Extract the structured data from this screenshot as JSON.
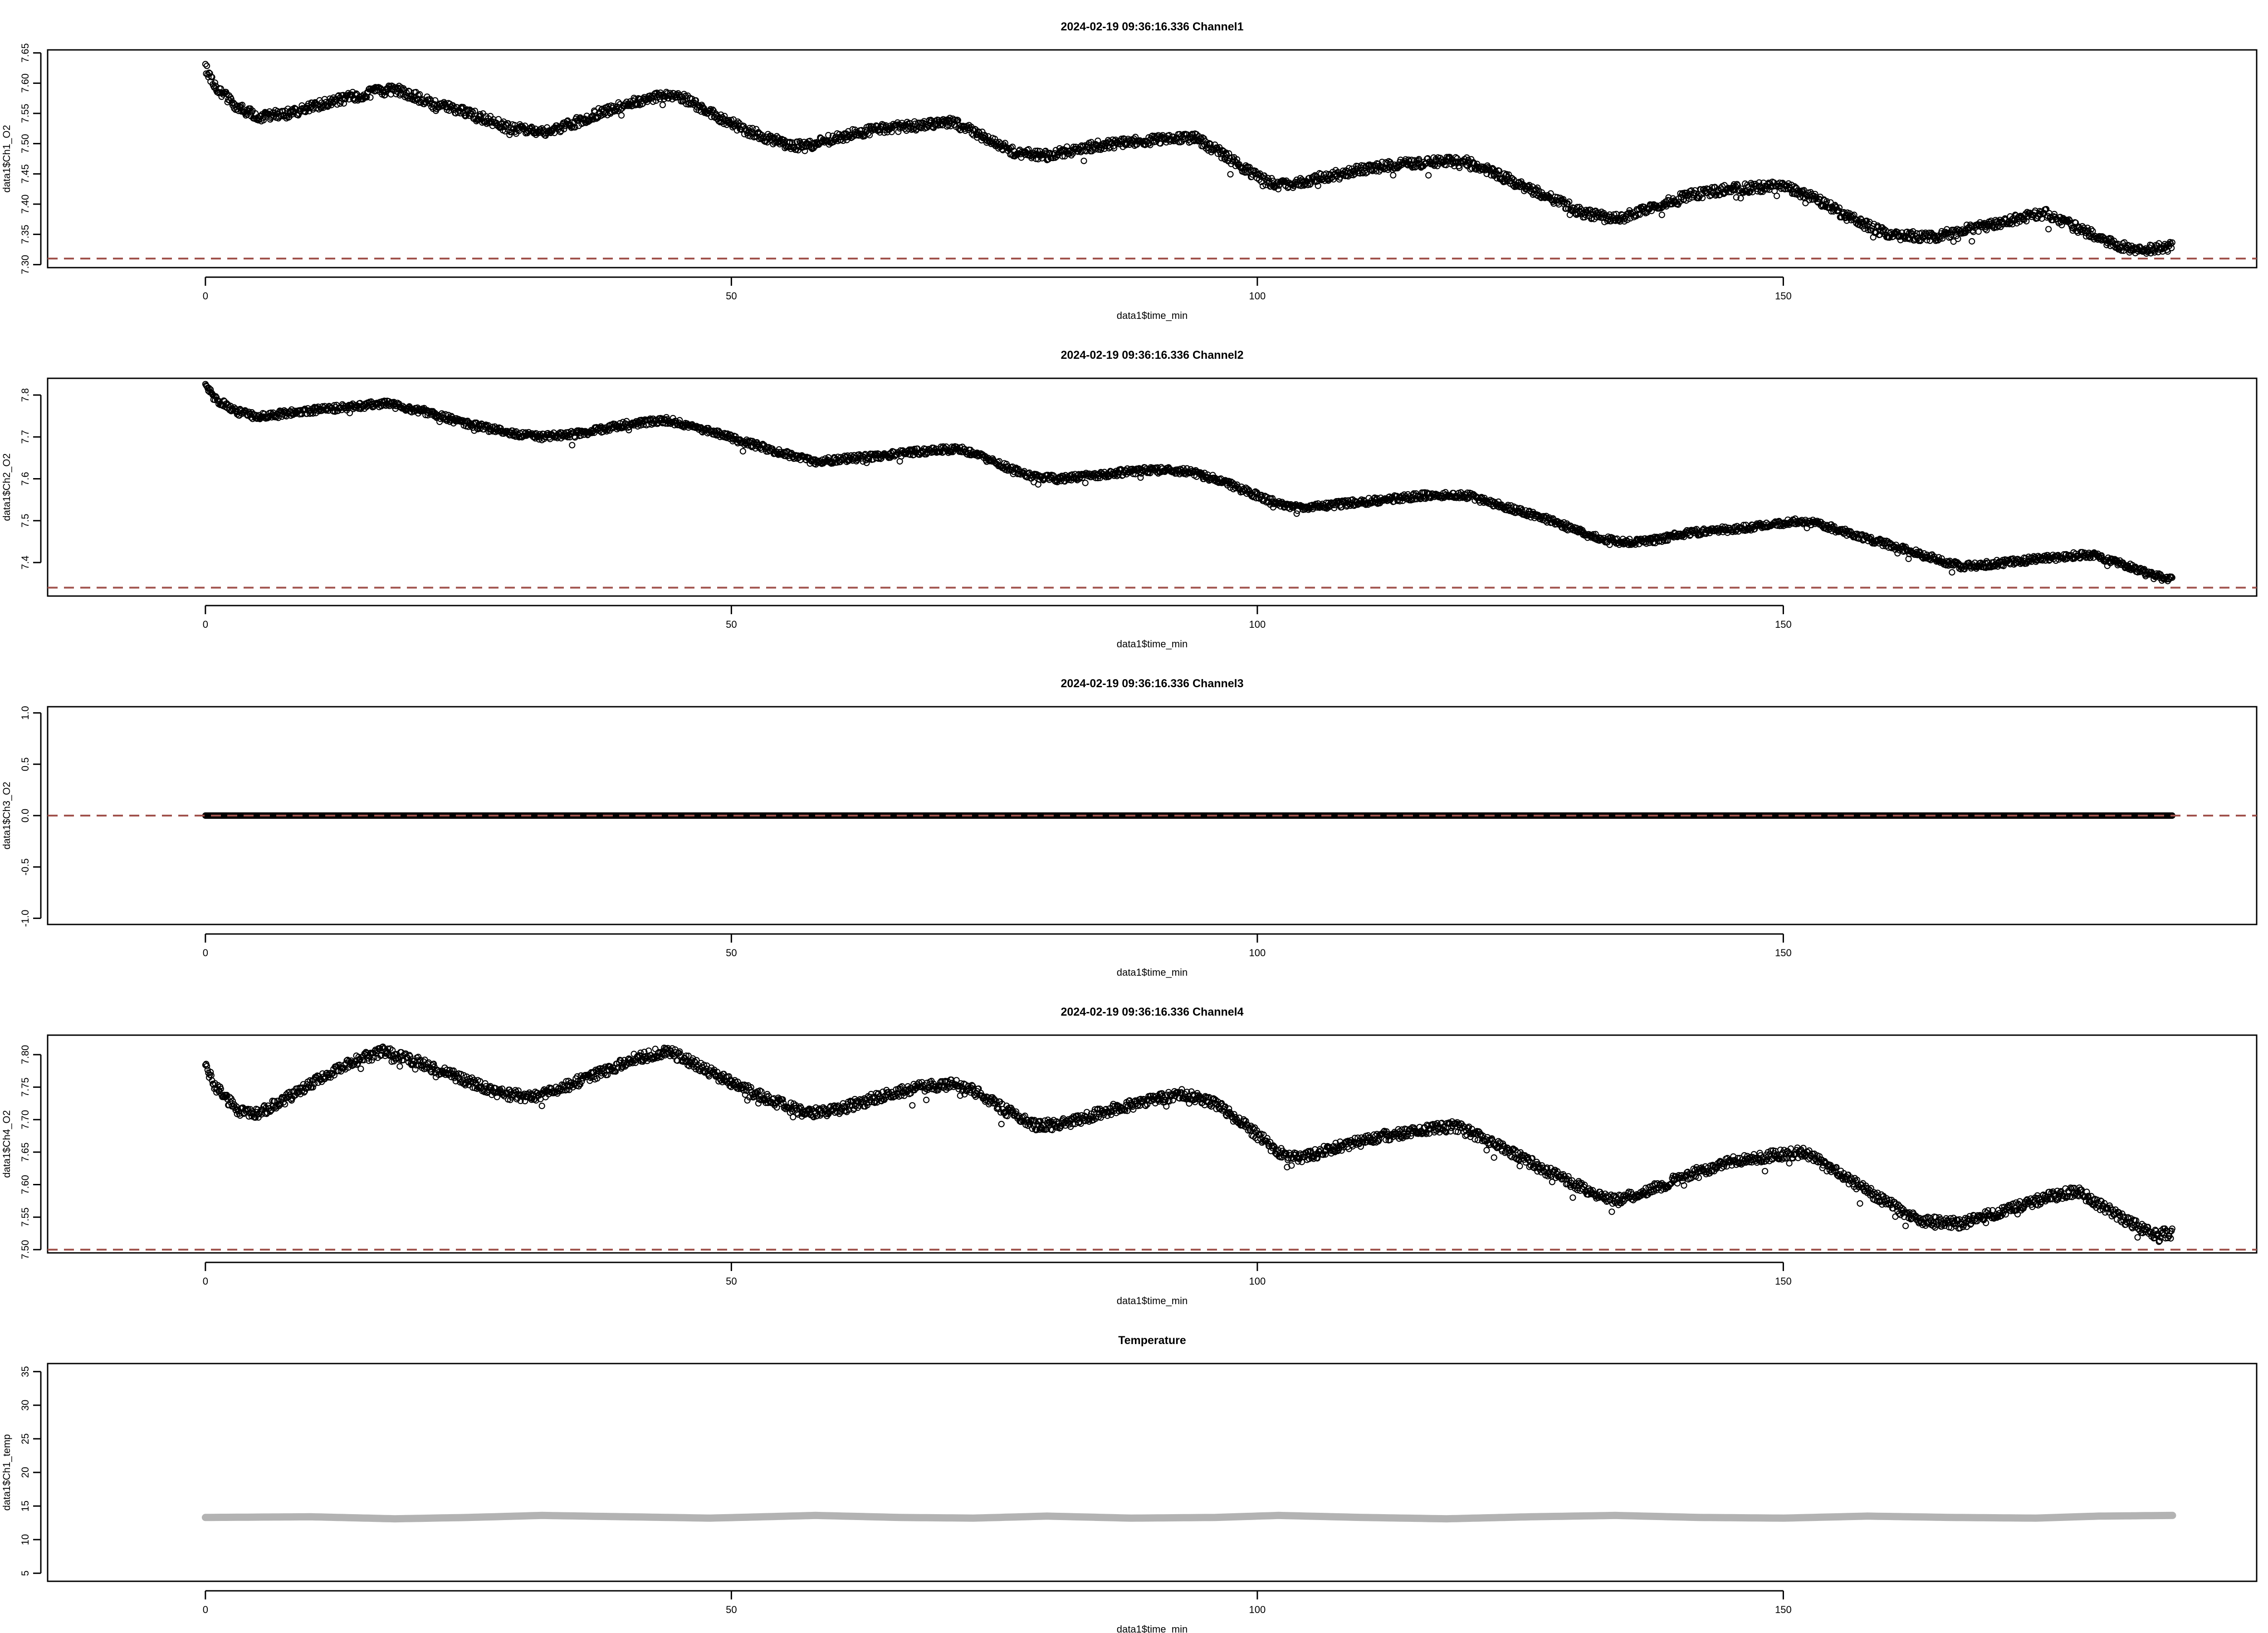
{
  "chart_data": [
    {
      "type": "scatter",
      "title": "2024-02-19 09:36:16.336 Channel1",
      "xlabel": "data1$time_min",
      "ylabel": "data1$Ch1_O2",
      "xlim": [
        -15,
        195
      ],
      "ylim": [
        7.295,
        7.655
      ],
      "xticks": [
        0,
        50,
        100,
        150
      ],
      "yticks": [
        7.3,
        7.35,
        7.4,
        7.45,
        7.5,
        7.55,
        7.6,
        7.65
      ],
      "ytick_labels": [
        "7.30",
        "7.35",
        "7.40",
        "7.45",
        "7.50",
        "7.55",
        "7.60",
        "7.65"
      ],
      "reference_line": 7.31,
      "reference_color": "#a0524c",
      "point_color": "#000000",
      "noise": 0.008,
      "x_end": 187,
      "series": [
        {
          "x": [
            0,
            1,
            3,
            5,
            8,
            12,
            16,
            18,
            22,
            26,
            29,
            33,
            38,
            42,
            45,
            47,
            51,
            55,
            57,
            60,
            64,
            68,
            71,
            73,
            77,
            80,
            84,
            89,
            94,
            97,
            100,
            102,
            105,
            109,
            113,
            117,
            120,
            124,
            128,
            131,
            134,
            137,
            141,
            145,
            150,
            153,
            156,
            160,
            164,
            168,
            172,
            175,
            178,
            182,
            184,
            187
          ],
          "y": [
            7.625,
            7.595,
            7.56,
            7.545,
            7.55,
            7.57,
            7.585,
            7.59,
            7.565,
            7.545,
            7.525,
            7.52,
            7.555,
            7.575,
            7.58,
            7.56,
            7.525,
            7.5,
            7.495,
            7.51,
            7.525,
            7.53,
            7.535,
            7.52,
            7.485,
            7.48,
            7.495,
            7.505,
            7.51,
            7.48,
            7.445,
            7.43,
            7.44,
            7.455,
            7.465,
            7.47,
            7.47,
            7.44,
            7.41,
            7.385,
            7.375,
            7.39,
            7.415,
            7.425,
            7.43,
            7.41,
            7.38,
            7.35,
            7.345,
            7.36,
            7.375,
            7.385,
            7.36,
            7.33,
            7.325,
            7.33
          ]
        }
      ]
    },
    {
      "type": "scatter",
      "title": "2024-02-19 09:36:16.336 Channel2",
      "xlabel": "data1$time_min",
      "ylabel": "data1$Ch2_O2",
      "xlim": [
        -15,
        195
      ],
      "ylim": [
        7.32,
        7.84
      ],
      "xticks": [
        0,
        50,
        100,
        150
      ],
      "yticks": [
        7.4,
        7.5,
        7.6,
        7.7,
        7.8
      ],
      "ytick_labels": [
        "7.4",
        "7.5",
        "7.6",
        "7.7",
        "7.8"
      ],
      "reference_line": 7.34,
      "reference_color": "#a0524c",
      "point_color": "#000000",
      "noise": 0.008,
      "x_end": 187,
      "series": [
        {
          "x": [
            0,
            1,
            3,
            5,
            9,
            13,
            17,
            21,
            25,
            29,
            32,
            36,
            40,
            44,
            47,
            51,
            55,
            58,
            62,
            66,
            70,
            72,
            75,
            78,
            81,
            85,
            89,
            93,
            96,
            99,
            102,
            104,
            108,
            112,
            116,
            120,
            124,
            128,
            131,
            134,
            137,
            141,
            145,
            149,
            152,
            155,
            159,
            163,
            167,
            171,
            175,
            179,
            183,
            185,
            187
          ],
          "y": [
            7.82,
            7.79,
            7.76,
            7.75,
            7.76,
            7.77,
            7.78,
            7.76,
            7.73,
            7.71,
            7.7,
            7.71,
            7.73,
            7.74,
            7.72,
            7.69,
            7.66,
            7.64,
            7.65,
            7.66,
            7.67,
            7.67,
            7.64,
            7.61,
            7.6,
            7.61,
            7.62,
            7.62,
            7.6,
            7.57,
            7.54,
            7.53,
            7.54,
            7.55,
            7.56,
            7.56,
            7.53,
            7.5,
            7.47,
            7.45,
            7.45,
            7.47,
            7.48,
            7.49,
            7.5,
            7.48,
            7.45,
            7.42,
            7.39,
            7.4,
            7.41,
            7.42,
            7.39,
            7.37,
            7.36
          ]
        }
      ]
    },
    {
      "type": "scatter",
      "title": "2024-02-19 09:36:16.336 Channel3",
      "xlabel": "data1$time_min",
      "ylabel": "data1$Ch3_O2",
      "xlim": [
        -15,
        195
      ],
      "ylim": [
        -1.06,
        1.06
      ],
      "xticks": [
        0,
        50,
        100,
        150
      ],
      "yticks": [
        -1.0,
        -0.5,
        0.0,
        0.5,
        1.0
      ],
      "ytick_labels": [
        "-1.0",
        "-0.5",
        "0.0",
        "0.5",
        "1.0"
      ],
      "reference_line": 0.0,
      "reference_color": "#a0524c",
      "point_color": "#000000",
      "noise": 0,
      "x_end": 187,
      "series": [
        {
          "x": [
            0,
            187
          ],
          "y": [
            0.0,
            0.0
          ]
        }
      ]
    },
    {
      "type": "scatter",
      "title": "2024-02-19 09:36:16.336 Channel4",
      "xlabel": "data1$time_min",
      "ylabel": "data1$Ch4_O2",
      "xlim": [
        -15,
        195
      ],
      "ylim": [
        7.495,
        7.83
      ],
      "xticks": [
        0,
        50,
        100,
        150
      ],
      "yticks": [
        7.5,
        7.55,
        7.6,
        7.65,
        7.7,
        7.75,
        7.8
      ],
      "ytick_labels": [
        "7.50",
        "7.55",
        "7.60",
        "7.65",
        "7.70",
        "7.75",
        "7.80"
      ],
      "reference_line": 7.5,
      "reference_color": "#a0524c",
      "point_color": "#000000",
      "noise": 0.008,
      "x_end": 187,
      "series": [
        {
          "x": [
            0,
            1,
            3,
            5,
            8,
            11,
            14,
            17,
            20,
            24,
            28,
            31,
            34,
            38,
            41,
            44,
            46,
            49,
            53,
            57,
            60,
            64,
            68,
            71,
            73,
            76,
            79,
            82,
            86,
            90,
            93,
            96,
            99,
            102,
            104,
            108,
            112,
            116,
            119,
            123,
            127,
            131,
            134,
            137,
            141,
            145,
            149,
            152,
            155,
            159,
            163,
            167,
            171,
            175,
            178,
            182,
            185,
            187
          ],
          "y": [
            7.78,
            7.75,
            7.715,
            7.71,
            7.735,
            7.765,
            7.79,
            7.805,
            7.79,
            7.765,
            7.74,
            7.735,
            7.75,
            7.775,
            7.795,
            7.805,
            7.79,
            7.765,
            7.735,
            7.71,
            7.715,
            7.735,
            7.75,
            7.755,
            7.745,
            7.715,
            7.69,
            7.695,
            7.715,
            7.73,
            7.74,
            7.725,
            7.69,
            7.65,
            7.64,
            7.66,
            7.675,
            7.685,
            7.69,
            7.66,
            7.625,
            7.595,
            7.575,
            7.59,
            7.615,
            7.635,
            7.645,
            7.65,
            7.62,
            7.58,
            7.545,
            7.54,
            7.56,
            7.58,
            7.59,
            7.55,
            7.525,
            7.525
          ]
        }
      ]
    },
    {
      "type": "line",
      "title": "Temperature",
      "xlabel": "data1$time_min",
      "ylabel": "data1$Ch1_temp",
      "xlim": [
        -15,
        195
      ],
      "ylim": [
        3.8,
        36.2
      ],
      "xticks": [
        0,
        50,
        100,
        150
      ],
      "yticks": [
        5,
        10,
        15,
        20,
        25,
        30,
        35
      ],
      "ytick_labels": [
        "5",
        "10",
        "15",
        "20",
        "25",
        "30",
        "35"
      ],
      "point_color": "#b3b3b3",
      "x_end": 187,
      "series": [
        {
          "x": [
            0,
            10,
            18,
            25,
            32,
            40,
            48,
            58,
            66,
            73,
            80,
            88,
            96,
            102,
            110,
            118,
            126,
            134,
            142,
            150,
            158,
            166,
            174,
            180,
            187
          ],
          "y": [
            13.3,
            13.4,
            13.1,
            13.3,
            13.6,
            13.4,
            13.2,
            13.6,
            13.3,
            13.2,
            13.5,
            13.2,
            13.3,
            13.6,
            13.3,
            13.1,
            13.4,
            13.6,
            13.3,
            13.2,
            13.5,
            13.3,
            13.2,
            13.5,
            13.6
          ]
        }
      ]
    }
  ]
}
